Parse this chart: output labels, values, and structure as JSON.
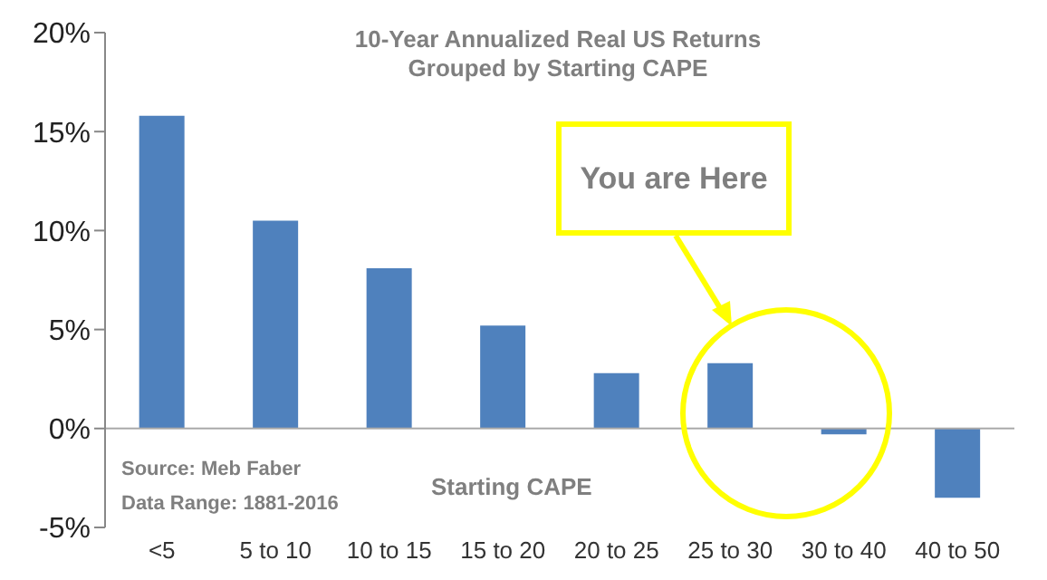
{
  "chart_data": {
    "type": "bar",
    "title": "10-Year Annualized Real US Returns\nGrouped by Starting CAPE",
    "xlabel": "Starting CAPE",
    "categories": [
      "<5",
      "5 to 10",
      "10 to 15",
      "15 to 20",
      "20 to 25",
      "25 to 30",
      "30 to 40",
      "40 to 50"
    ],
    "values": [
      15.8,
      10.5,
      8.1,
      5.2,
      2.8,
      3.3,
      -0.3,
      -3.5
    ],
    "color": "#4f81bd",
    "ylim": [
      -5,
      20
    ],
    "yticks": [
      {
        "value": -5,
        "label": "-5%"
      },
      {
        "value": 0,
        "label": "0%"
      },
      {
        "value": 5,
        "label": "5%"
      },
      {
        "value": 10,
        "label": "10%"
      },
      {
        "value": 15,
        "label": "15%"
      },
      {
        "value": 20,
        "label": "20%"
      }
    ],
    "legend": false,
    "annotations": [
      "Source: Meb Faber",
      "Data Range: 1881-2016",
      "You are Here"
    ]
  }
}
